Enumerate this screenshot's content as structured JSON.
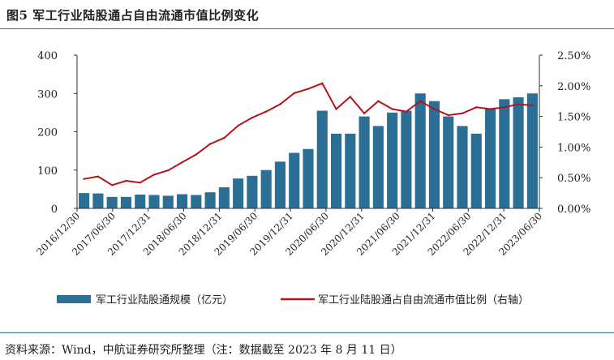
{
  "header": {
    "title": "图5  军工行业陆股通占自由流通市值比例变化"
  },
  "footer": {
    "source": "资料来源：Wind，中航证券研究所整理（注：数据截至 2023 年 8 月 11 日）"
  },
  "colors": {
    "bar": "#2b6f96",
    "line": "#b5121b",
    "rule": "#2e6f9e"
  },
  "chart_data": {
    "type": "bar",
    "title": "",
    "x_labels": [
      "2016/12/30",
      "2017/06/30",
      "2017/12/31",
      "2018/06/30",
      "2018/12/31",
      "2019/06/30",
      "2019/12/31",
      "2020/06/30",
      "2020/12/31",
      "2021/06/30",
      "2021/12/31",
      "2022/06/30",
      "2022/12/31",
      "2023/06/30"
    ],
    "y_left": {
      "ticks": [
        "400",
        "300",
        "200",
        "100",
        "0"
      ],
      "ylim": [
        0,
        400
      ]
    },
    "y_right": {
      "ticks": [
        "2.50%",
        "2.00%",
        "1.50%",
        "1.00%",
        "0.50%",
        "0.00%"
      ],
      "ylim": [
        0,
        2.5
      ],
      "unit": "%"
    },
    "series": [
      {
        "name": "军工行业陆股通规模（亿元）",
        "type": "bar",
        "axis": "left",
        "values": [
          40,
          39,
          30,
          30,
          36,
          35,
          33,
          37,
          35,
          42,
          55,
          78,
          85,
          100,
          122,
          145,
          155,
          255,
          195,
          195,
          240,
          215,
          250,
          255,
          300,
          280,
          240,
          215,
          195,
          260,
          285,
          290,
          300
        ]
      },
      {
        "name": "军工行业陆股通占自由流通市值比例（右轴）",
        "type": "line",
        "axis": "right",
        "values": [
          0.48,
          0.52,
          0.38,
          0.45,
          0.42,
          0.55,
          0.62,
          0.75,
          0.88,
          1.05,
          1.15,
          1.35,
          1.48,
          1.58,
          1.7,
          1.88,
          1.95,
          2.04,
          1.62,
          1.82,
          1.55,
          1.75,
          1.62,
          1.58,
          1.75,
          1.62,
          1.52,
          1.55,
          1.65,
          1.62,
          1.65,
          1.7,
          1.68
        ]
      }
    ],
    "legend_position": "bottom"
  }
}
